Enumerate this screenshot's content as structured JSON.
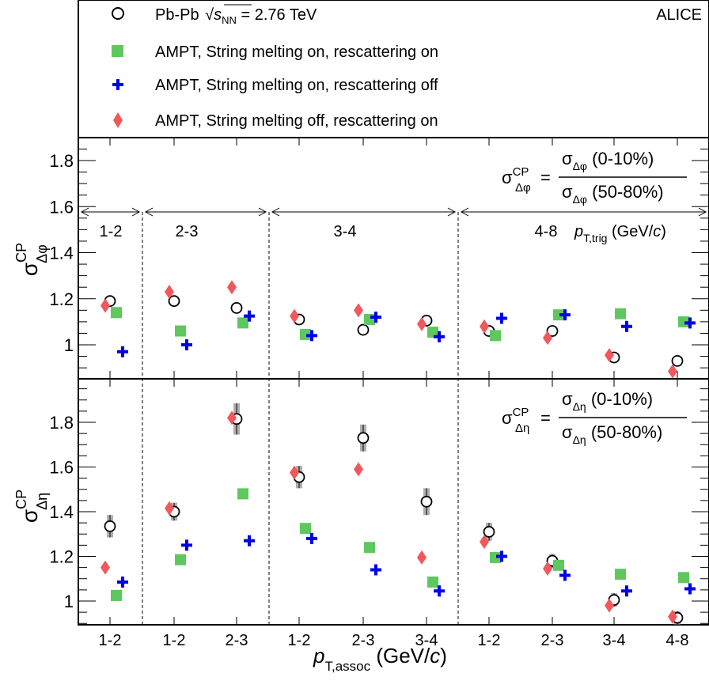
{
  "legend": {
    "entries": [
      {
        "label_pre": "Pb-Pb ",
        "sqrt_s": "s",
        "sqrt_sub": "NN",
        "label_post": " = 2.76 TeV",
        "marker": "open-circle",
        "color": "#000000"
      },
      {
        "label": "AMPT, String melting on, rescattering on",
        "marker": "square",
        "color": "#5ec85e"
      },
      {
        "label": "AMPT, String melting on, rescattering off",
        "marker": "cross",
        "color": "#0000e6"
      },
      {
        "label": "AMPT, String melting off, rescattering on",
        "marker": "diamond",
        "color": "#f0585c"
      }
    ],
    "experiment": "ALICE"
  },
  "top_panel": {
    "ylabel_main": "σ",
    "ylabel_sup": "CP",
    "ylabel_sub": "Δφ",
    "formula": {
      "lhs": "σ",
      "lhs_sup": "CP",
      "lhs_sub": "Δφ",
      "num_sym": "σ",
      "num_sub": "Δφ",
      "num_text": " (0-10%)",
      "den_sym": "σ",
      "den_sub": "Δφ",
      "den_text": " (50-80%)"
    },
    "ptrig_bins": [
      "1-2",
      "2-3",
      "3-4",
      "4-8"
    ],
    "ptrig_label_main": "p",
    "ptrig_label_sub": "T,trig",
    "ptrig_label_unit": " (GeV/",
    "ptrig_label_c": "c",
    "ptrig_label_close": ")"
  },
  "bottom_panel": {
    "ylabel_main": "σ",
    "ylabel_sup": "CP",
    "ylabel_sub": "Δη",
    "formula": {
      "lhs": "σ",
      "lhs_sup": "CP",
      "lhs_sub": "Δη",
      "num_sym": "σ",
      "num_sub": "Δη",
      "num_text": " (0-10%)",
      "den_sym": "σ",
      "den_sub": "Δη",
      "den_text": " (50-80%)"
    }
  },
  "xaxis": {
    "label_main": "p",
    "label_sub": "T,assoc",
    "label_unit": " (GeV/",
    "label_c": "c",
    "label_close": ")",
    "tick_labels": [
      "1-2",
      "1-2",
      "2-3",
      "1-2",
      "2-3",
      "3-4",
      "1-2",
      "2-3",
      "3-4",
      "4-8"
    ]
  },
  "chart_data": [
    {
      "type": "scatter",
      "panel": "top",
      "categories": [
        "1-2",
        "1-2",
        "2-3",
        "1-2",
        "2-3",
        "3-4",
        "1-2",
        "2-3",
        "3-4",
        "4-8"
      ],
      "ylim": [
        0.87,
        1.9
      ],
      "yticks": [
        1.0,
        1.2,
        1.4,
        1.6,
        1.8
      ],
      "series": [
        {
          "name": "Pb-Pb",
          "values": [
            1.19,
            1.19,
            1.16,
            1.11,
            1.065,
            1.105,
            1.06,
            1.06,
            0.945,
            0.93
          ]
        },
        {
          "name": "AMPT, String melting on, rescattering on",
          "values": [
            1.14,
            1.06,
            1.095,
            1.045,
            1.11,
            1.055,
            1.04,
            1.13,
            1.135,
            1.1
          ]
        },
        {
          "name": "AMPT, String melting on, rescattering off",
          "values": [
            0.97,
            1.0,
            1.125,
            1.04,
            1.12,
            1.035,
            1.115,
            1.13,
            1.08,
            1.095
          ]
        },
        {
          "name": "AMPT, String melting off, rescattering on",
          "values": [
            1.17,
            1.23,
            1.25,
            1.125,
            1.15,
            1.09,
            1.08,
            1.03,
            0.955,
            0.885
          ]
        }
      ]
    },
    {
      "type": "scatter",
      "panel": "bottom",
      "categories": [
        "1-2",
        "1-2",
        "2-3",
        "1-2",
        "2-3",
        "3-4",
        "1-2",
        "2-3",
        "3-4",
        "4-8"
      ],
      "ylim": [
        0.87,
        1.98
      ],
      "yticks": [
        1.0,
        1.2,
        1.4,
        1.6,
        1.8
      ],
      "series": [
        {
          "name": "Pb-Pb",
          "values": [
            1.335,
            1.4,
            1.815,
            1.555,
            1.73,
            1.445,
            1.31,
            1.18,
            1.005,
            0.925
          ],
          "errors": [
            0.05,
            0.04,
            0.07,
            0.05,
            0.06,
            0.06,
            0.04,
            0.03,
            0.03,
            0.03
          ]
        },
        {
          "name": "AMPT, String melting on, rescattering on",
          "values": [
            1.025,
            1.185,
            1.48,
            1.325,
            1.24,
            1.085,
            1.195,
            1.16,
            1.12,
            1.105
          ]
        },
        {
          "name": "AMPT, String melting on, rescattering off",
          "values": [
            1.085,
            1.25,
            1.27,
            1.28,
            1.14,
            1.045,
            1.2,
            1.115,
            1.045,
            1.055
          ]
        },
        {
          "name": "AMPT, String melting off, rescattering on",
          "values": [
            1.15,
            1.415,
            1.82,
            1.575,
            1.59,
            1.195,
            1.265,
            1.145,
            0.98,
            0.93
          ]
        }
      ]
    }
  ]
}
